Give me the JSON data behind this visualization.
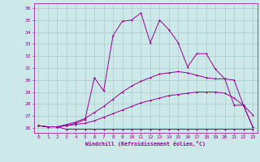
{
  "xlabel": "Windchill (Refroidissement éolien,°C)",
  "background_color": "#cce8e8",
  "grid_color": "#aacccc",
  "line_color": "#990099",
  "xlim": [
    -0.5,
    23.5
  ],
  "ylim": [
    25.6,
    36.4
  ],
  "xticks": [
    0,
    1,
    2,
    3,
    4,
    5,
    6,
    7,
    8,
    9,
    10,
    11,
    12,
    13,
    14,
    15,
    16,
    17,
    18,
    19,
    20,
    21,
    22,
    23
  ],
  "yticks": [
    26,
    27,
    28,
    29,
    30,
    31,
    32,
    33,
    34,
    35,
    36
  ],
  "line1_x": [
    0,
    1,
    2,
    3,
    4,
    5,
    6,
    7,
    8,
    9,
    10,
    11,
    12,
    13,
    14,
    15,
    16,
    17,
    18,
    19,
    20,
    21,
    22,
    23
  ],
  "line1_y": [
    26.2,
    26.1,
    26.1,
    25.9,
    25.9,
    25.9,
    25.9,
    25.9,
    25.9,
    25.9,
    25.9,
    25.9,
    25.9,
    25.9,
    25.9,
    25.9,
    25.9,
    25.9,
    25.9,
    25.9,
    25.9,
    25.9,
    25.9,
    25.9
  ],
  "line2_x": [
    0,
    1,
    2,
    3,
    4,
    5,
    6,
    7,
    8,
    9,
    10,
    11,
    12,
    13,
    14,
    15,
    16,
    17,
    18,
    19,
    20,
    21,
    22,
    23
  ],
  "line2_y": [
    26.2,
    26.1,
    26.1,
    26.2,
    26.3,
    26.4,
    26.6,
    26.9,
    27.2,
    27.5,
    27.8,
    28.1,
    28.3,
    28.5,
    28.7,
    28.8,
    28.9,
    29.0,
    29.0,
    29.0,
    28.9,
    28.5,
    27.9,
    26.1
  ],
  "line3_x": [
    0,
    1,
    2,
    3,
    4,
    5,
    6,
    7,
    8,
    9,
    10,
    11,
    12,
    13,
    14,
    15,
    16,
    17,
    18,
    19,
    20,
    21,
    22,
    23
  ],
  "line3_y": [
    26.2,
    26.1,
    26.1,
    26.3,
    26.5,
    26.8,
    27.3,
    27.8,
    28.4,
    29.0,
    29.5,
    29.9,
    30.2,
    30.5,
    30.6,
    30.7,
    30.6,
    30.4,
    30.2,
    30.1,
    30.1,
    30.0,
    27.9,
    26.1
  ],
  "line4_x": [
    0,
    1,
    2,
    3,
    4,
    5,
    6,
    7,
    8,
    9,
    10,
    11,
    12,
    13,
    14,
    15,
    16,
    17,
    18,
    19,
    20,
    21,
    22,
    23
  ],
  "line4_y": [
    26.2,
    26.1,
    26.1,
    26.2,
    26.4,
    26.7,
    30.2,
    29.1,
    33.7,
    34.9,
    35.0,
    35.6,
    33.1,
    35.0,
    34.2,
    33.1,
    31.1,
    32.2,
    32.2,
    30.9,
    30.1,
    27.9,
    27.9,
    27.1
  ]
}
